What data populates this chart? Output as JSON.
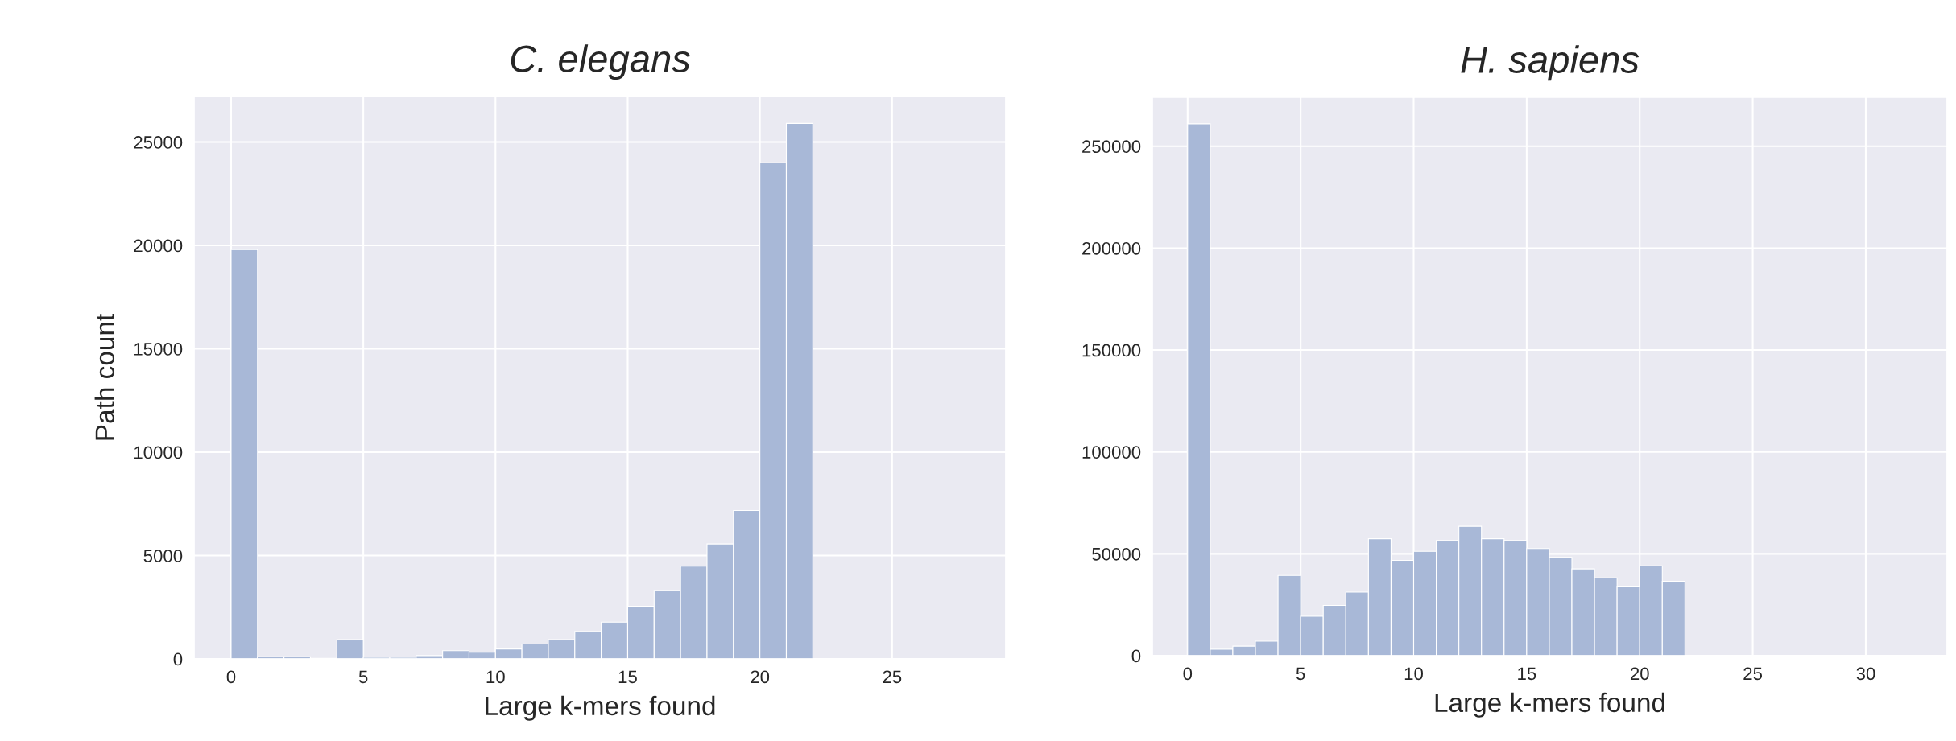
{
  "chart_data": [
    {
      "type": "histogram",
      "title": "C. elegans",
      "xlabel": "Large k-mers found",
      "ylabel": "Path count",
      "color": "#a8b8d7",
      "grid": true,
      "bins": [
        0,
        1,
        2,
        3,
        4,
        5,
        6,
        7,
        8,
        9,
        10,
        11,
        12,
        13,
        14,
        15,
        16,
        17,
        18,
        19,
        20,
        21,
        22
      ],
      "values": [
        19800,
        100,
        100,
        30,
        930,
        80,
        80,
        160,
        400,
        320,
        480,
        720,
        930,
        1330,
        1780,
        2550,
        3320,
        4490,
        5560,
        7180,
        24000,
        25900
      ],
      "xlim": [
        -1.4,
        29.3
      ],
      "ylim": [
        0,
        27200
      ],
      "xticks": [
        0,
        5,
        10,
        15,
        20,
        25
      ],
      "yticks": [
        0,
        5000,
        10000,
        15000,
        20000,
        25000
      ]
    },
    {
      "type": "histogram",
      "title": "H. sapiens",
      "xlabel": "Large k-mers found",
      "color": "#a8b8d7",
      "grid": true,
      "bins": [
        0,
        1,
        2,
        3,
        4,
        5,
        6,
        7,
        8,
        9,
        10,
        11,
        12,
        13,
        14,
        15,
        16,
        17,
        18,
        19,
        20,
        21,
        22,
        23
      ],
      "values": [
        261000,
        3200,
        4700,
        7100,
        39400,
        19400,
        24700,
        31200,
        57400,
        46800,
        51200,
        56500,
        63500,
        57400,
        56500,
        52600,
        48200,
        42600,
        38200,
        34100,
        44100,
        36500,
        null
      ],
      "xlim": [
        -1.56,
        33.6
      ],
      "ylim": [
        0,
        274000
      ],
      "xticks": [
        0,
        5,
        10,
        15,
        20,
        25,
        30
      ],
      "yticks": [
        0,
        50000,
        100000,
        150000,
        200000,
        250000
      ]
    }
  ]
}
